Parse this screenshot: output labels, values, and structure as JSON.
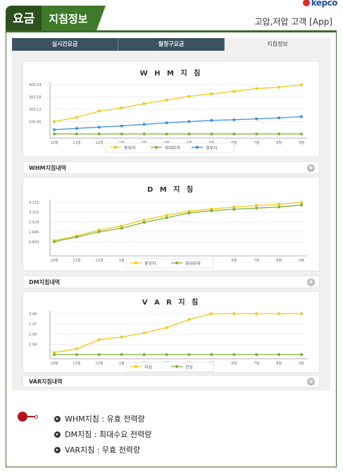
{
  "brand": {
    "name": "kepco"
  },
  "header": {
    "tab_main": "요금",
    "tab_sub": "지침정보",
    "right_label": "고압,저압 고객 [App]"
  },
  "nav": {
    "tabs": [
      {
        "label": "실시간요금"
      },
      {
        "label": "월청구요금"
      },
      {
        "label": "지침정보",
        "active": true
      }
    ]
  },
  "charts": [
    {
      "type": "line",
      "title": "W H M 지 침",
      "categories": [
        "10월",
        "11월",
        "12월",
        "1월",
        "2월",
        "3월",
        "4월",
        "5월",
        "6월",
        "7월",
        "8월",
        "9월"
      ],
      "ylim": [
        0,
        400.24
      ],
      "yticks": [
        "400.24",
        "300.18",
        "200.12",
        "100.06"
      ],
      "series": [
        {
          "name": "중부하",
          "color": "#f5c518",
          "values": [
            100,
            135,
            185,
            210,
            245,
            275,
            305,
            325,
            345,
            368,
            378,
            398
          ]
        },
        {
          "name": "최대부하",
          "color": "#7ab32e",
          "values": [
            0,
            0,
            0,
            0,
            0,
            0,
            0,
            0,
            0,
            0,
            0,
            0
          ]
        },
        {
          "name": "경부하",
          "color": "#3a8fe0",
          "values": [
            35,
            45,
            55,
            65,
            78,
            90,
            100,
            110,
            115,
            122,
            130,
            140
          ]
        }
      ]
    },
    {
      "type": "line",
      "title": "D M 지 침",
      "categories": [
        "10월",
        "11월",
        "12월",
        "1월",
        "2월",
        "3월",
        "4월",
        "5월",
        "6월",
        "7월",
        "8월",
        "9월"
      ],
      "ylim": [
        0,
        4.215
      ],
      "yticks": [
        "4.215",
        "3.372",
        "2.529",
        "1.686",
        "0.843"
      ],
      "series": [
        {
          "name": "중부하",
          "color": "#f5c518",
          "values": [
            0.95,
            1.35,
            1.85,
            2.2,
            2.7,
            3.1,
            3.45,
            3.65,
            3.8,
            3.95,
            4.05,
            4.2
          ]
        },
        {
          "name": "최대부하",
          "color": "#7ab32e",
          "values": [
            0.85,
            1.25,
            1.7,
            2.0,
            2.5,
            2.9,
            3.3,
            3.5,
            3.62,
            3.72,
            3.82,
            3.98
          ]
        }
      ]
    },
    {
      "type": "line",
      "title": "V A R 지 침",
      "categories": [
        "10월",
        "11월",
        "12월",
        "1월",
        "2월",
        "3월",
        "4월",
        "5월",
        "6월",
        "7월",
        "8월",
        "9월"
      ],
      "ylim": [
        0,
        3.96
      ],
      "yticks": [
        "3.96",
        "2.97",
        "1.98",
        "0.99"
      ],
      "series": [
        {
          "name": "지상",
          "color": "#f5c518",
          "values": [
            0.2,
            0.55,
            1.45,
            1.7,
            2.1,
            2.6,
            3.4,
            3.96,
            3.96,
            3.96,
            3.96,
            3.96
          ]
        },
        {
          "name": "진상",
          "color": "#7ab32e",
          "values": [
            0,
            0,
            0,
            0,
            0,
            0,
            0,
            0,
            0,
            0,
            0,
            0
          ]
        }
      ]
    }
  ],
  "strips": [
    {
      "label": "WHM지침내역"
    },
    {
      "label": "DM지침내역"
    },
    {
      "label": "VAR지침내역"
    }
  ],
  "notes": [
    {
      "text": "WHM지침 : 유효 전력량"
    },
    {
      "text": "DM지침 : 최대수요 전력량"
    },
    {
      "text": "VAR지침 : 무효 전력량"
    }
  ],
  "chart_data": [
    {
      "type": "line",
      "title": "W H M 지 침",
      "categories": [
        "10월",
        "11월",
        "12월",
        "1월",
        "2월",
        "3월",
        "4월",
        "5월",
        "6월",
        "7월",
        "8월",
        "9월"
      ],
      "ylim": [
        0,
        400.24
      ],
      "series": [
        {
          "name": "중부하",
          "values": [
            100,
            135,
            185,
            210,
            245,
            275,
            305,
            325,
            345,
            368,
            378,
            398
          ]
        },
        {
          "name": "최대부하",
          "values": [
            0,
            0,
            0,
            0,
            0,
            0,
            0,
            0,
            0,
            0,
            0,
            0
          ]
        },
        {
          "name": "경부하",
          "values": [
            35,
            45,
            55,
            65,
            78,
            90,
            100,
            110,
            115,
            122,
            130,
            140
          ]
        }
      ]
    },
    {
      "type": "line",
      "title": "D M 지 침",
      "categories": [
        "10월",
        "11월",
        "12월",
        "1월",
        "2월",
        "3월",
        "4월",
        "5월",
        "6월",
        "7월",
        "8월",
        "9월"
      ],
      "ylim": [
        0,
        4.215
      ],
      "series": [
        {
          "name": "중부하",
          "values": [
            0.95,
            1.35,
            1.85,
            2.2,
            2.7,
            3.1,
            3.45,
            3.65,
            3.8,
            3.95,
            4.05,
            4.2
          ]
        },
        {
          "name": "최대부하",
          "values": [
            0.85,
            1.25,
            1.7,
            2.0,
            2.5,
            2.9,
            3.3,
            3.5,
            3.62,
            3.72,
            3.82,
            3.98
          ]
        }
      ]
    },
    {
      "type": "line",
      "title": "V A R 지 침",
      "categories": [
        "10월",
        "11월",
        "12월",
        "1월",
        "2월",
        "3월",
        "4월",
        "5월",
        "6월",
        "7월",
        "8월",
        "9월"
      ],
      "ylim": [
        0,
        3.96
      ],
      "series": [
        {
          "name": "지상",
          "values": [
            0.2,
            0.55,
            1.45,
            1.7,
            2.1,
            2.6,
            3.4,
            3.96,
            3.96,
            3.96,
            3.96,
            3.96
          ]
        },
        {
          "name": "진상",
          "values": [
            0,
            0,
            0,
            0,
            0,
            0,
            0,
            0,
            0,
            0,
            0,
            0
          ]
        }
      ]
    }
  ]
}
